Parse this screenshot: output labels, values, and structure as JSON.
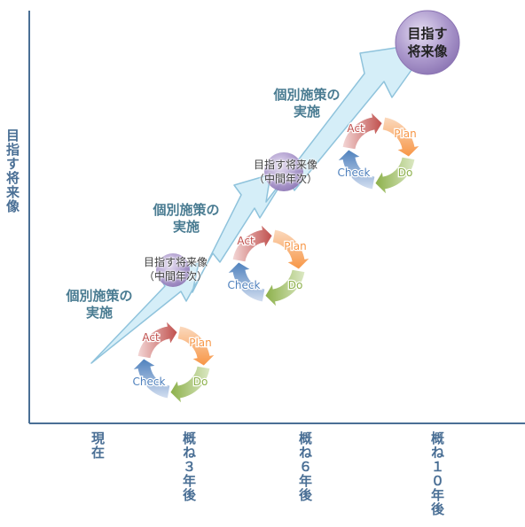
{
  "axis": {
    "y_label": "目指す将来像",
    "x_ticks": [
      {
        "label": "現在"
      },
      {
        "label": "概ね３年後"
      },
      {
        "label": "概ね６年後"
      },
      {
        "label": "概ね１０年後"
      }
    ]
  },
  "steps": [
    {
      "text": "個別施策の\n実施"
    },
    {
      "text": "個別施策の\n実施"
    },
    {
      "text": "個別施策の\n実施"
    }
  ],
  "milestones": [
    {
      "text": "目指す将来像\n（中間年次）"
    },
    {
      "text": "目指す将来像\n（中間年次）"
    }
  ],
  "goal": {
    "text": "目指す\n将来像"
  },
  "pdca": {
    "act": "Act",
    "plan": "Plan",
    "do": "Do",
    "check": "Check"
  },
  "colors": {
    "axis": "#4a6f95",
    "arrow_fill": "#d3edf7",
    "arrow_stroke": "#8fc3dc",
    "milestone_circle": "#9b86bf",
    "act": "#c0504d",
    "plan": "#f79646",
    "do": "#9bbb59",
    "check": "#4f81bd"
  }
}
